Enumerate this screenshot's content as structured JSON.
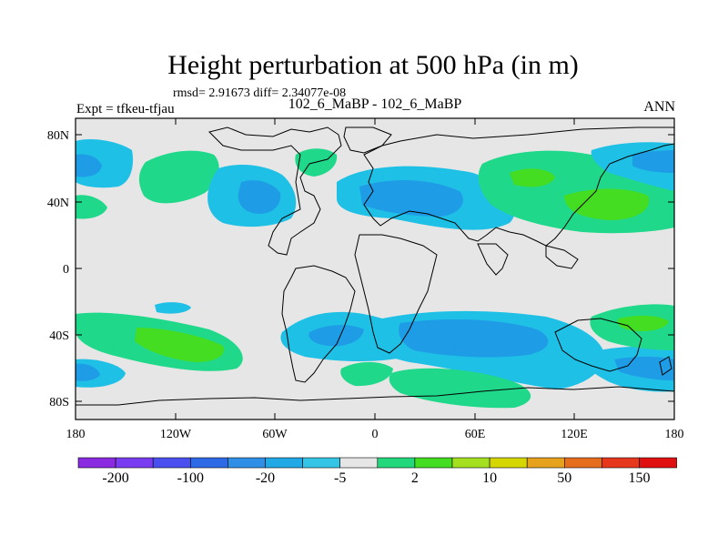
{
  "title": "Height perturbation at 500 hPa (in m)",
  "stats": "rmsd= 2.91673 diff= 2.34077e-08",
  "left_label": "Expt = tfkeu-tfjau",
  "center_label": "102_6_MaBP - 102_6_MaBP",
  "right_label": "ANN",
  "y_ticks": [
    "80N",
    "40N",
    "0",
    "40S",
    "80S"
  ],
  "x_ticks": [
    "180",
    "120W",
    "60W",
    "0",
    "60E",
    "120E",
    "180"
  ],
  "colorbar": {
    "colors": [
      "#8a2be2",
      "#7a3cf0",
      "#4a50f0",
      "#2f6ae6",
      "#2f8ee6",
      "#21a9e6",
      "#33c4e6",
      "#e6e6e6",
      "#22d87a",
      "#44dd22",
      "#a4e020",
      "#d6d600",
      "#e6a21c",
      "#e66d1c",
      "#e6381c",
      "#e01010"
    ],
    "labels": [
      "-200",
      "-100",
      "-20",
      "-5",
      "2",
      "10",
      "50",
      "150"
    ]
  },
  "palette": {
    "neutral": "#e6e6e6",
    "cyan": "#1fc0e6",
    "blue": "#1e9ce6",
    "green_light": "#20d88a",
    "green": "#44dd22"
  }
}
